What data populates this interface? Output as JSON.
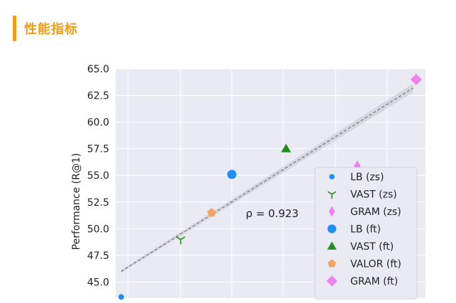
{
  "header": {
    "title": "性能指标"
  },
  "chart_data": {
    "type": "scatter",
    "ylabel": "Performance (R@1)",
    "xlabel": "",
    "ylim": [
      43.5,
      65.0
    ],
    "xlim": [
      0,
      10
    ],
    "yticks": [
      "45.0",
      "47.5",
      "50.0",
      "52.5",
      "55.0",
      "57.5",
      "60.0",
      "62.5",
      "65.0"
    ],
    "grid": true,
    "legend_position": "lower-right",
    "annotation": "ρ = 0.923",
    "background": "#eaeaf2",
    "trend_line": {
      "from": [
        0.18,
        46.0
      ],
      "to": [
        9.6,
        63.2
      ],
      "color": "#666666",
      "style": "dashed"
    },
    "series": [
      {
        "name": "LB (zs)",
        "marker": "dot",
        "color": "#1e90ff",
        "x": 0.18,
        "y": 43.6
      },
      {
        "name": "VAST (zs)",
        "marker": "tri_down",
        "color": "#2e8b2e",
        "x": 2.1,
        "y": 49.0
      },
      {
        "name": "GRAM (zs)",
        "marker": "thin_diamond",
        "color": "#ee82ee",
        "x": 7.8,
        "y": 55.9
      },
      {
        "name": "LB (ft)",
        "marker": "circle",
        "color": "#1e90ff",
        "x": 3.75,
        "y": 55.1
      },
      {
        "name": "VAST (ft)",
        "marker": "triangle",
        "color": "#228b22",
        "x": 5.5,
        "y": 57.5
      },
      {
        "name": "VALOR (ft)",
        "marker": "pentagon",
        "color": "#f4a460",
        "x": 3.1,
        "y": 51.5
      },
      {
        "name": "GRAM (ft)",
        "marker": "diamond",
        "color": "#ee82ee",
        "x": 9.7,
        "y": 64.0
      }
    ]
  }
}
